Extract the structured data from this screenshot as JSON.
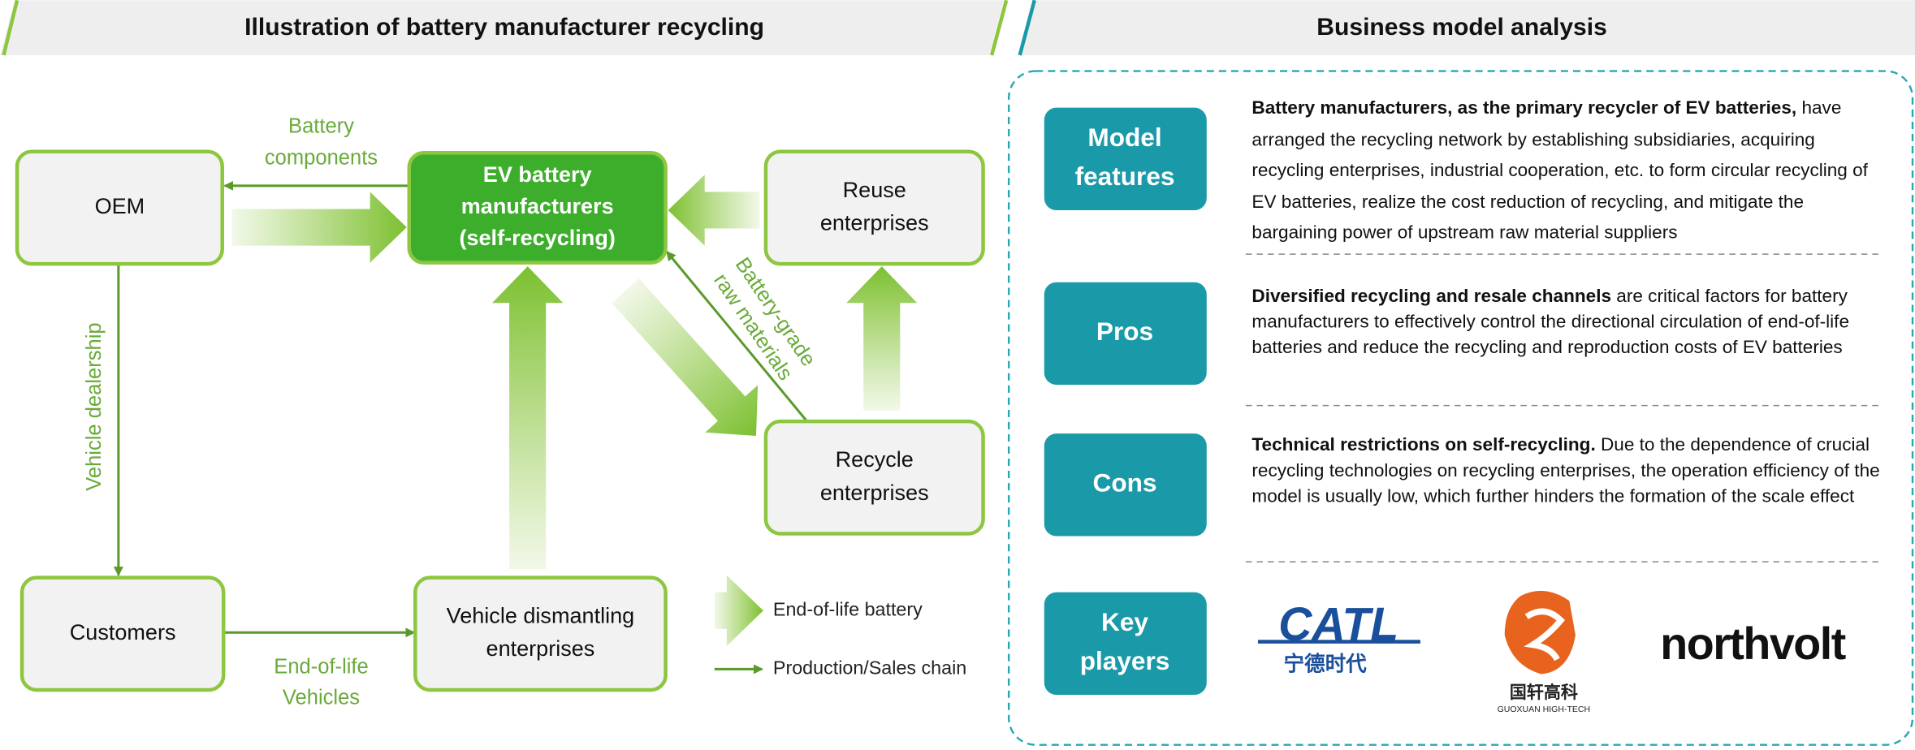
{
  "left": {
    "title": "Illustration of battery manufacturer recycling",
    "nodes": [
      {
        "lines": [
          "OEM"
        ]
      },
      {
        "lines": [
          "EV battery",
          "manufacturers",
          "(self-recycling)"
        ]
      },
      {
        "lines": [
          "Reuse",
          "enterprises"
        ]
      },
      {
        "lines": [
          "Recycle",
          "enterprises"
        ]
      },
      {
        "lines": [
          "Customers"
        ]
      },
      {
        "lines": [
          "Vehicle dismantling",
          "enterprises"
        ]
      }
    ],
    "edge_labels": [
      {
        "lines": [
          "Battery",
          "components"
        ]
      },
      {
        "lines": [
          "Vehicle dealership"
        ]
      },
      {
        "lines": [
          "End-of-life",
          "Vehicles"
        ]
      },
      {
        "lines": [
          "Battery-grade",
          "raw materials"
        ]
      }
    ],
    "legend": [
      "End-of-life battery",
      "Production/Sales chain"
    ]
  },
  "right": {
    "title": "Business model analysis",
    "rows": [
      {
        "label": [
          "Model",
          "features"
        ],
        "bold": "Battery manufacturers, as the primary recycler of EV batteries,",
        "text": "have arranged the recycling network by establishing subsidiaries, acquiring recycling enterprises, industrial cooperation, etc. to form circular recycling of EV batteries, realize the cost reduction of recycling, and mitigate the bargaining power of upstream raw material suppliers"
      },
      {
        "label": [
          "Pros"
        ],
        "bold": "Diversified recycling and resale channels",
        "text": "are critical factors for battery manufacturers to effectively control the directional circulation of end-of-life batteries and reduce the recycling and reproduction costs of EV batteries"
      },
      {
        "label": [
          "Cons"
        ],
        "bold": "Technical restrictions on self-recycling.",
        "text": "Due to the dependence of crucial recycling technologies on recycling enterprises, the operation efficiency of the model is usually low, which further hinders the formation of the scale effect"
      },
      {
        "label": [
          "Key",
          "players"
        ]
      }
    ],
    "players": {
      "catl": [
        "CATL",
        "宁德时代"
      ],
      "guoxuan": [
        "国轩高科",
        "GUOXUAN HIGH-TECH"
      ],
      "northvolt": "northvolt"
    }
  }
}
